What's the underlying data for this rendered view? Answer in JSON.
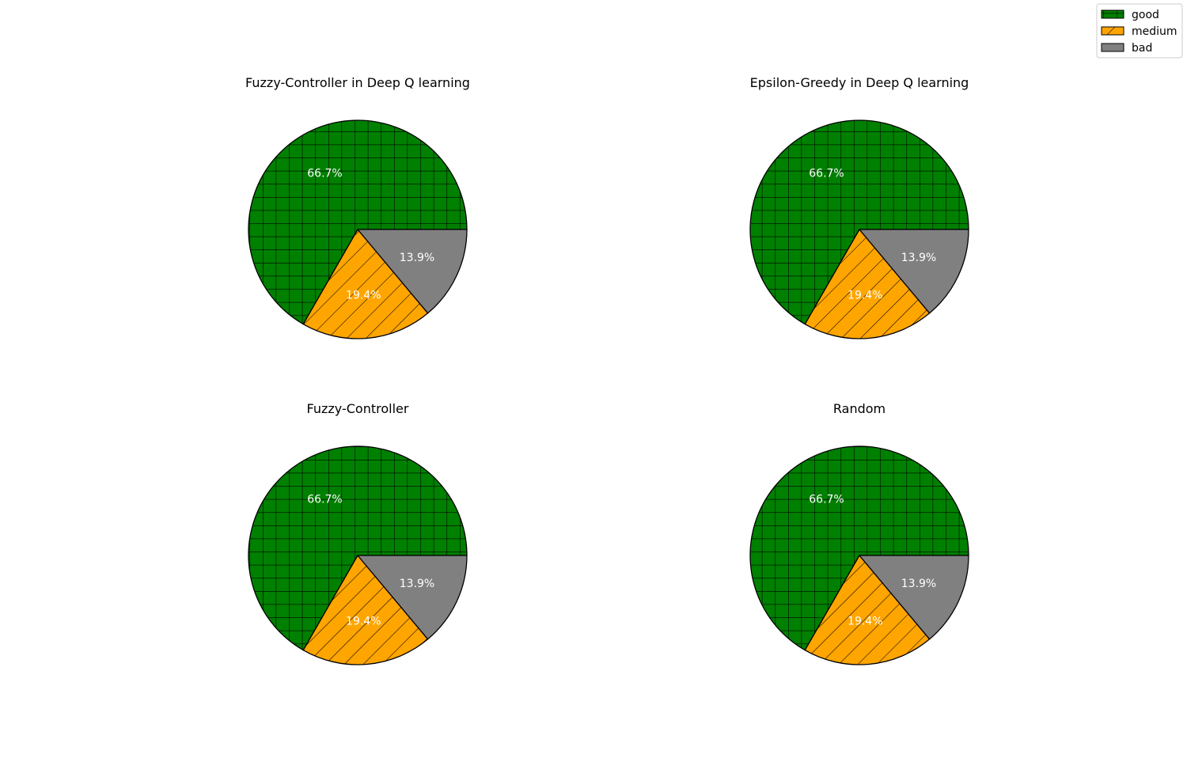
{
  "legend": {
    "placement": "top-right",
    "items": [
      {
        "label": "good",
        "color": "#008000",
        "hatch": "grid"
      },
      {
        "label": "medium",
        "color": "#ffa500",
        "hatch": "diagonal"
      },
      {
        "label": "bad",
        "color": "#808080",
        "hatch": "none"
      }
    ]
  },
  "chart_data": [
    {
      "type": "pie",
      "title": "Fuzzy-Controller in Deep Q learning",
      "categories": [
        "good",
        "medium",
        "bad"
      ],
      "values": [
        66.7,
        19.4,
        13.9
      ],
      "labels": [
        "66.7%",
        "19.4%",
        "13.9%"
      ]
    },
    {
      "type": "pie",
      "title": "Epsilon-Greedy in Deep Q learning",
      "categories": [
        "good",
        "medium",
        "bad"
      ],
      "values": [
        66.7,
        19.4,
        13.9
      ],
      "labels": [
        "66.7%",
        "19.4%",
        "13.9%"
      ]
    },
    {
      "type": "pie",
      "title": "Fuzzy-Controller",
      "categories": [
        "good",
        "medium",
        "bad"
      ],
      "values": [
        66.7,
        19.4,
        13.9
      ],
      "labels": [
        "66.7%",
        "19.4%",
        "13.9%"
      ]
    },
    {
      "type": "pie",
      "title": "Random",
      "categories": [
        "good",
        "medium",
        "bad"
      ],
      "values": [
        66.7,
        19.4,
        13.9
      ],
      "labels": [
        "66.7%",
        "19.4%",
        "13.9%"
      ]
    }
  ]
}
